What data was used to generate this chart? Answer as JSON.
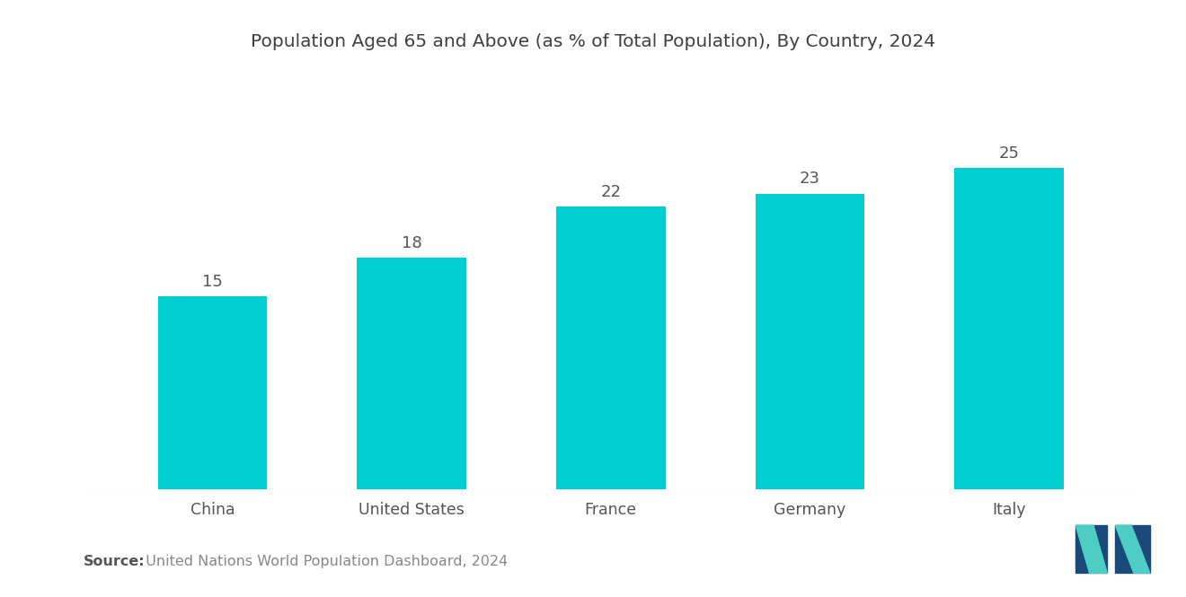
{
  "title": "Population Aged 65 and Above (as % of Total Population), By Country, 2024",
  "categories": [
    "China",
    "United States",
    "France",
    "Germany",
    "Italy"
  ],
  "values": [
    15,
    18,
    22,
    23,
    25
  ],
  "bar_color": "#00CED1",
  "background_color": "#ffffff",
  "title_color": "#404040",
  "label_color": "#555555",
  "value_color": "#555555",
  "source_bold": "Source:",
  "source_text": "  United Nations World Population Dashboard, 2024",
  "title_fontsize": 14.5,
  "category_fontsize": 12.5,
  "value_fontsize": 13,
  "source_fontsize": 11.5,
  "ylim": [
    0,
    32
  ],
  "bar_width": 0.55,
  "logo_left_color1": "#1a5276",
  "logo_left_color2": "#5dade2",
  "logo_right_color1": "#1abc9c",
  "logo_right_color2": "#148f77"
}
